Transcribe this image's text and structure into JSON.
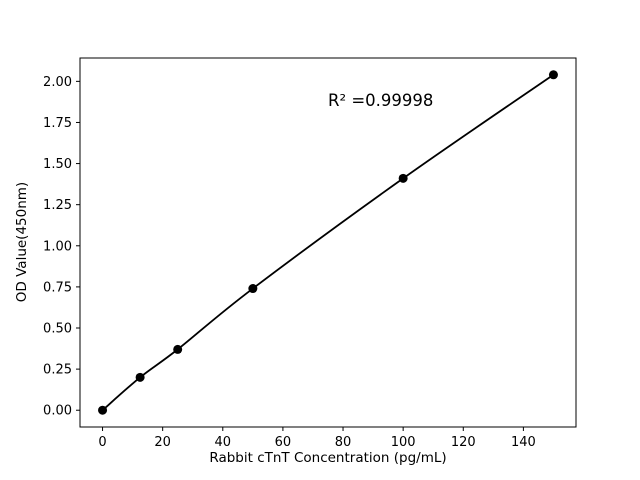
{
  "figure": {
    "background": "#ffffff"
  },
  "chart_data": {
    "type": "line",
    "title": "",
    "xlabel": "Rabbit cTnT Concentration (pg/mL)",
    "ylabel": "OD Value(450nm)",
    "x": [
      0,
      12.5,
      25,
      50,
      100,
      150
    ],
    "y": [
      0.0,
      0.2,
      0.37,
      0.74,
      1.41,
      2.04
    ],
    "xlim": [
      -7.5,
      157.5
    ],
    "ylim": [
      -0.102,
      2.142
    ],
    "xticks": [
      0,
      20,
      40,
      60,
      80,
      100,
      120,
      140
    ],
    "yticks": [
      0.0,
      0.25,
      0.5,
      0.75,
      1.0,
      1.25,
      1.5,
      1.75,
      2.0
    ],
    "grid": false,
    "legend": "none",
    "line_color": "#000000",
    "marker_color": "#000000",
    "marker": "circle",
    "annotation": "R² =0.99998",
    "annotation_pos": {
      "x": 75,
      "y": 1.85
    }
  }
}
